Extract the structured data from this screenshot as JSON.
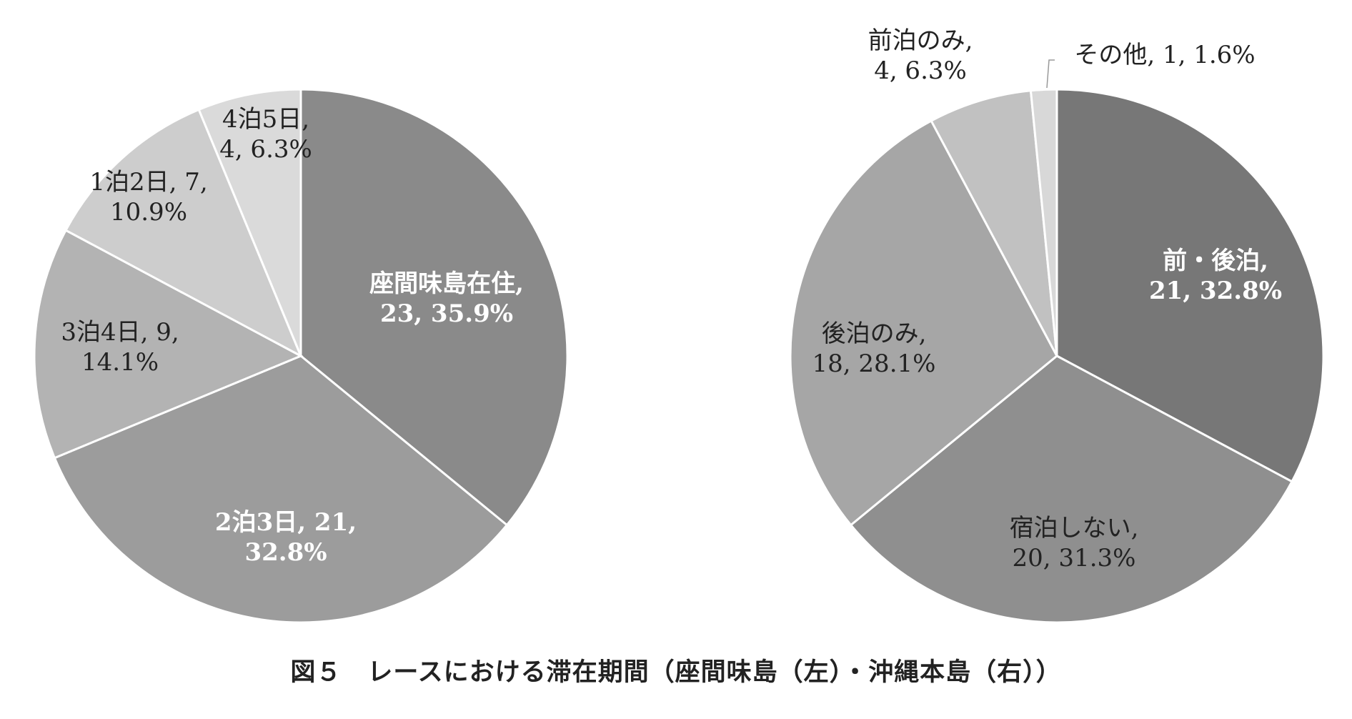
{
  "caption": "図５　レースにおける滞在期間（座間味島（左）・沖縄本島（右））",
  "chart_data": [
    {
      "type": "pie",
      "name": "座間味島",
      "start_angle": "12 o'clock",
      "direction": "clockwise",
      "slices": [
        {
          "label": "座間味島在住",
          "count": 23,
          "percent": "35.9%",
          "color": "#8a8a8a",
          "text_color": "#ffffff",
          "lines": [
            "座間味島在住,",
            "23, 35.9%"
          ]
        },
        {
          "label": "2泊3日",
          "count": 21,
          "percent": "32.8%",
          "color": "#9c9c9c",
          "text_color": "#ffffff",
          "lines": [
            "2泊3日, 21,",
            "32.8%"
          ]
        },
        {
          "label": "3泊4日",
          "count": 9,
          "percent": "14.1%",
          "color": "#b3b3b3",
          "text_color": "#222222",
          "lines": [
            "3泊4日, 9,",
            "14.1%"
          ]
        },
        {
          "label": "1泊2日",
          "count": 7,
          "percent": "10.9%",
          "color": "#cdcdcd",
          "text_color": "#222222",
          "lines": [
            "1泊2日, 7,",
            "10.9%"
          ]
        },
        {
          "label": "4泊5日",
          "count": 4,
          "percent": "6.3%",
          "color": "#dadada",
          "text_color": "#222222",
          "lines": [
            "4泊5日,",
            "4, 6.3%"
          ]
        }
      ]
    },
    {
      "type": "pie",
      "name": "沖縄本島",
      "start_angle": "12 o'clock",
      "direction": "clockwise",
      "slices": [
        {
          "label": "前・後泊",
          "count": 21,
          "percent": "32.8%",
          "color": "#777777",
          "text_color": "#ffffff",
          "lines": [
            "前・後泊,",
            "21, 32.8%"
          ]
        },
        {
          "label": "宿泊しない",
          "count": 20,
          "percent": "31.3%",
          "color": "#8f8f8f",
          "text_color": "#222222",
          "lines": [
            "宿泊しない,",
            "20, 31.3%"
          ]
        },
        {
          "label": "後泊のみ",
          "count": 18,
          "percent": "28.1%",
          "color": "#a6a6a6",
          "text_color": "#222222",
          "lines": [
            "後泊のみ,",
            "18, 28.1%"
          ]
        },
        {
          "label": "前泊のみ",
          "count": 4,
          "percent": "6.3%",
          "color": "#c1c1c1",
          "text_color": "#222222",
          "lines": [
            "前泊のみ,",
            "4, 6.3%"
          ]
        },
        {
          "label": "その他",
          "count": 1,
          "percent": "1.6%",
          "color": "#d8d8d8",
          "text_color": "#222222",
          "lines": [
            "その他, 1, 1.6%"
          ]
        }
      ]
    }
  ]
}
